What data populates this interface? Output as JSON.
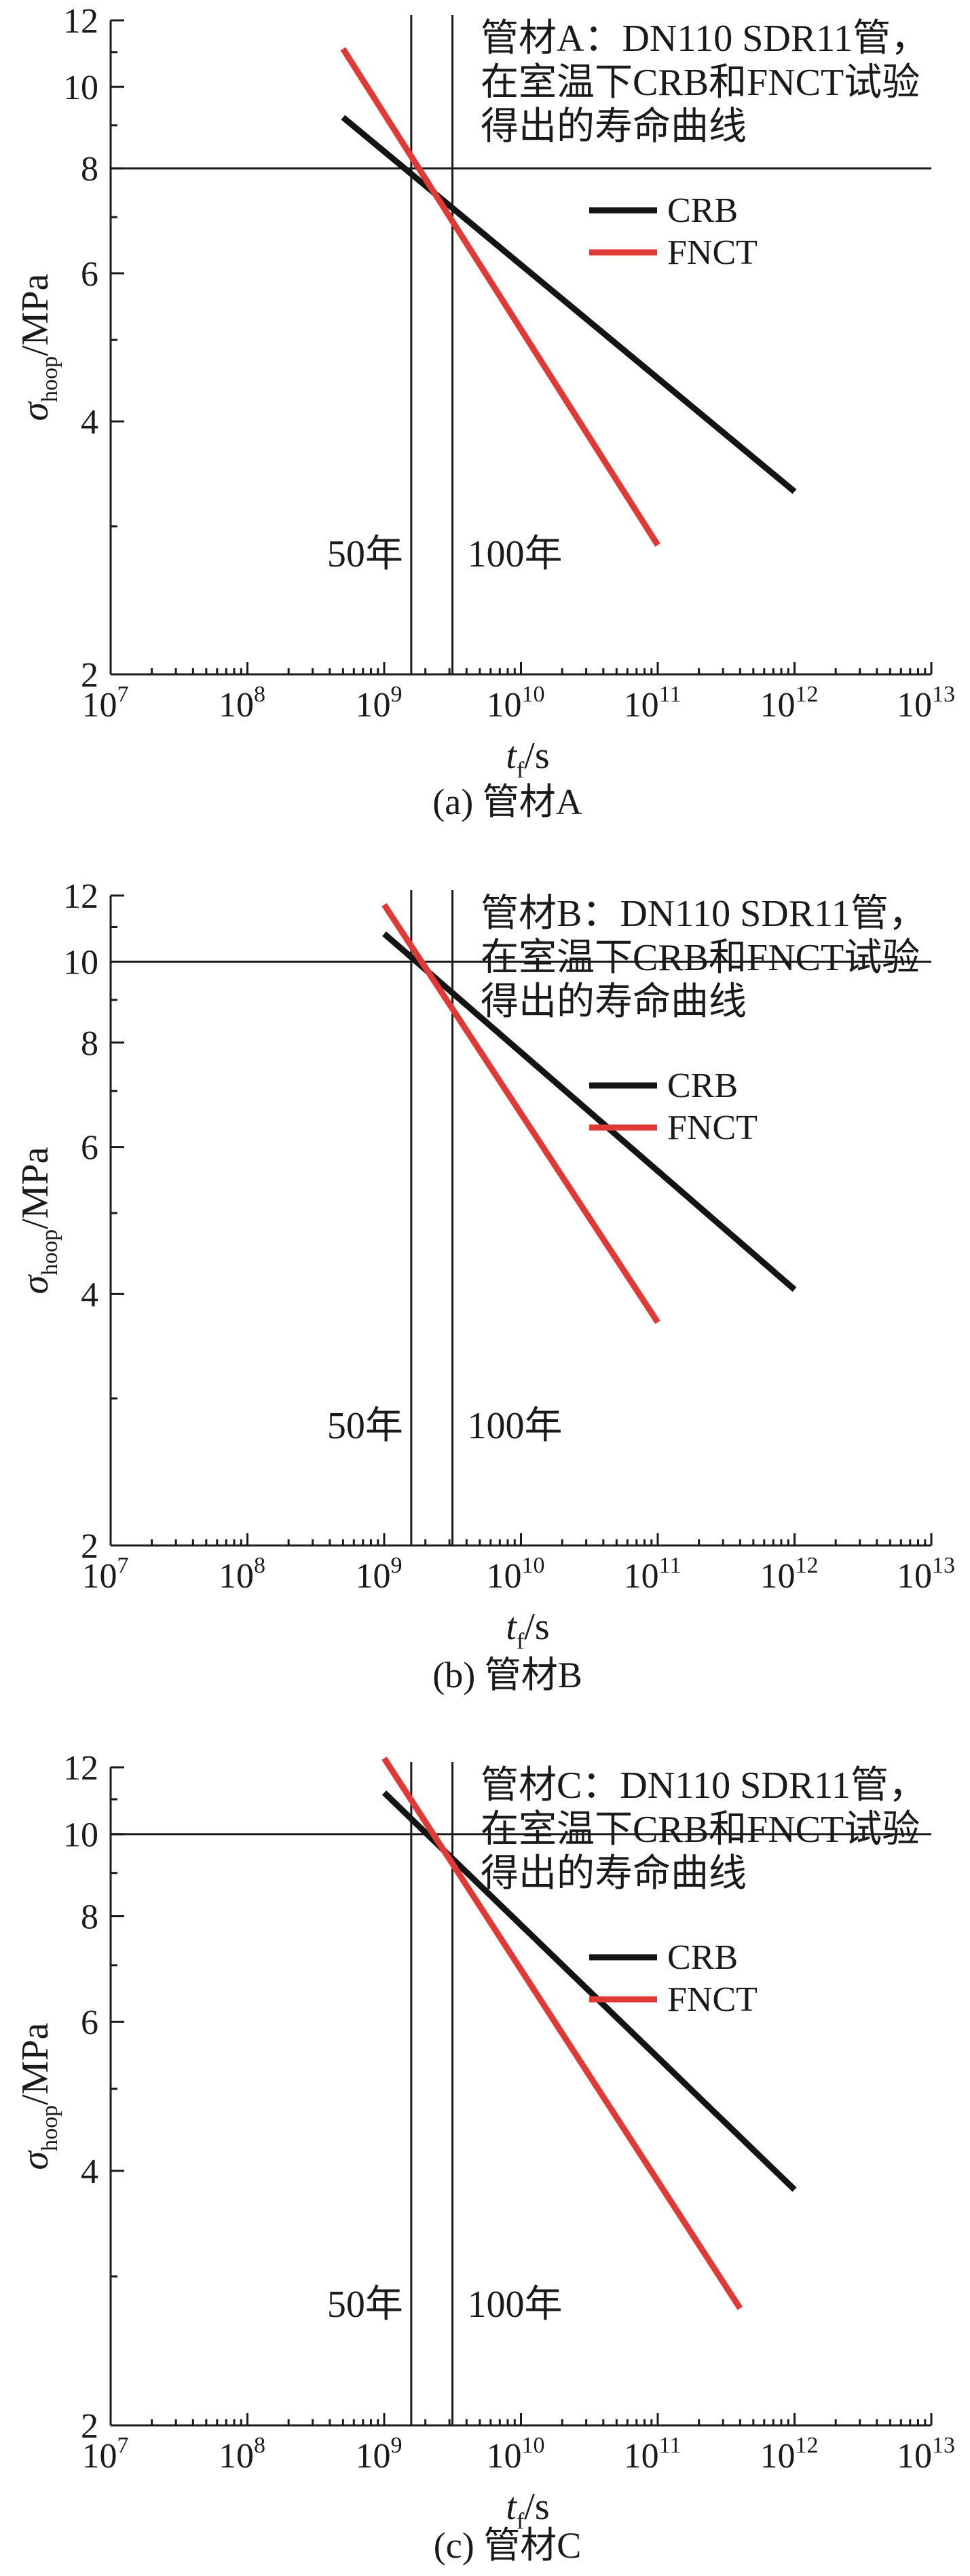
{
  "chart_data": [
    {
      "type": "line",
      "title": [
        "管材A：DN110 SDR11管，",
        "在室温下CRB和FNCT试验",
        "得出的寿命曲线"
      ],
      "caption": "(a) 管材A",
      "xlabel": "t",
      "xlabel_sub": "f",
      "xlabel_unit": "/s",
      "ylabel": "σ",
      "ylabel_sub": "hoop",
      "ylabel_unit": "/MPa",
      "x_scale": "log",
      "y_scale": "log",
      "xlim": [
        10000000,
        10000000000000
      ],
      "ylim": [
        2,
        12
      ],
      "x_ticks": [
        {
          "base": "10",
          "exp": "7",
          "value": 10000000
        },
        {
          "base": "10",
          "exp": "8",
          "value": 100000000
        },
        {
          "base": "10",
          "exp": "9",
          "value": 1000000000
        },
        {
          "base": "10",
          "exp": "10",
          "value": 10000000000
        },
        {
          "base": "10",
          "exp": "11",
          "value": 100000000000
        },
        {
          "base": "10",
          "exp": "12",
          "value": 1000000000000
        },
        {
          "base": "10",
          "exp": "13",
          "value": 10000000000000
        }
      ],
      "y_ticks": [
        {
          "label": "2",
          "value": 2
        },
        {
          "label": "4",
          "value": 4
        },
        {
          "label": "6",
          "value": 6
        },
        {
          "label": "8",
          "value": 8
        },
        {
          "label": "10",
          "value": 10
        },
        {
          "label": "12",
          "value": 12
        }
      ],
      "reference_lines": {
        "horizontal": {
          "value": 8
        },
        "vertical": [
          {
            "value": 1577000000,
            "label": "50年"
          },
          {
            "value": 3154000000,
            "label": "100年"
          }
        ]
      },
      "legend": {
        "position": "upper-right"
      },
      "series": [
        {
          "name": "CRB",
          "color": "#141414",
          "x": [
            500000000,
            1000000000000
          ],
          "y": [
            9.2,
            3.3
          ]
        },
        {
          "name": "FNCT",
          "color": "#e03a36",
          "x": [
            500000000,
            100000000000
          ],
          "y": [
            11.1,
            2.85
          ]
        }
      ]
    },
    {
      "type": "line",
      "title": [
        "管材B：DN110 SDR11管，",
        "在室温下CRB和FNCT试验",
        "得出的寿命曲线"
      ],
      "caption": "(b) 管材B",
      "xlabel": "t",
      "xlabel_sub": "f",
      "xlabel_unit": "/s",
      "ylabel": "σ",
      "ylabel_sub": "hoop",
      "ylabel_unit": "/MPa",
      "x_scale": "log",
      "y_scale": "log",
      "xlim": [
        10000000,
        10000000000000
      ],
      "ylim": [
        2,
        12
      ],
      "x_ticks": [
        {
          "base": "10",
          "exp": "7",
          "value": 10000000
        },
        {
          "base": "10",
          "exp": "8",
          "value": 100000000
        },
        {
          "base": "10",
          "exp": "9",
          "value": 1000000000
        },
        {
          "base": "10",
          "exp": "10",
          "value": 10000000000
        },
        {
          "base": "10",
          "exp": "11",
          "value": 100000000000
        },
        {
          "base": "10",
          "exp": "12",
          "value": 1000000000000
        },
        {
          "base": "10",
          "exp": "13",
          "value": 10000000000000
        }
      ],
      "y_ticks": [
        {
          "label": "2",
          "value": 2
        },
        {
          "label": "4",
          "value": 4
        },
        {
          "label": "6",
          "value": 6
        },
        {
          "label": "8",
          "value": 8
        },
        {
          "label": "10",
          "value": 10
        },
        {
          "label": "12",
          "value": 12
        }
      ],
      "reference_lines": {
        "horizontal": {
          "value": 10
        },
        "vertical": [
          {
            "value": 1577000000,
            "label": "50年"
          },
          {
            "value": 3154000000,
            "label": "100年"
          }
        ]
      },
      "legend": {
        "position": "upper-right"
      },
      "series": [
        {
          "name": "CRB",
          "color": "#141414",
          "x": [
            1000000000,
            1000000000000
          ],
          "y": [
            10.8,
            4.05
          ]
        },
        {
          "name": "FNCT",
          "color": "#e03a36",
          "x": [
            1000000000,
            100000000000
          ],
          "y": [
            11.7,
            3.7
          ]
        }
      ]
    },
    {
      "type": "line",
      "title": [
        "管材C：DN110 SDR11管，",
        "在室温下CRB和FNCT试验",
        "得出的寿命曲线"
      ],
      "caption": "(c) 管材C",
      "xlabel": "t",
      "xlabel_sub": "f",
      "xlabel_unit": "/s",
      "ylabel": "σ",
      "ylabel_sub": "hoop",
      "ylabel_unit": "/MPa",
      "x_scale": "log",
      "y_scale": "log",
      "xlim": [
        10000000,
        10000000000000
      ],
      "ylim": [
        2,
        12
      ],
      "x_ticks": [
        {
          "base": "10",
          "exp": "7",
          "value": 10000000
        },
        {
          "base": "10",
          "exp": "8",
          "value": 100000000
        },
        {
          "base": "10",
          "exp": "9",
          "value": 1000000000
        },
        {
          "base": "10",
          "exp": "10",
          "value": 10000000000
        },
        {
          "base": "10",
          "exp": "11",
          "value": 100000000000
        },
        {
          "base": "10",
          "exp": "12",
          "value": 1000000000000
        },
        {
          "base": "10",
          "exp": "13",
          "value": 10000000000000
        }
      ],
      "y_ticks": [
        {
          "label": "2",
          "value": 2
        },
        {
          "label": "4",
          "value": 4
        },
        {
          "label": "6",
          "value": 6
        },
        {
          "label": "8",
          "value": 8
        },
        {
          "label": "10",
          "value": 10
        },
        {
          "label": "12",
          "value": 12
        }
      ],
      "reference_lines": {
        "horizontal": {
          "value": 10
        },
        "vertical": [
          {
            "value": 1577000000,
            "label": "50年"
          },
          {
            "value": 3154000000,
            "label": "100年"
          }
        ]
      },
      "legend": {
        "position": "upper-right"
      },
      "series": [
        {
          "name": "CRB",
          "color": "#141414",
          "x": [
            1000000000,
            1000000000000
          ],
          "y": [
            11.2,
            3.8
          ]
        },
        {
          "name": "FNCT",
          "color": "#e03a36",
          "x": [
            1000000000,
            400000000000
          ],
          "y": [
            12.3,
            2.75
          ]
        }
      ]
    }
  ]
}
